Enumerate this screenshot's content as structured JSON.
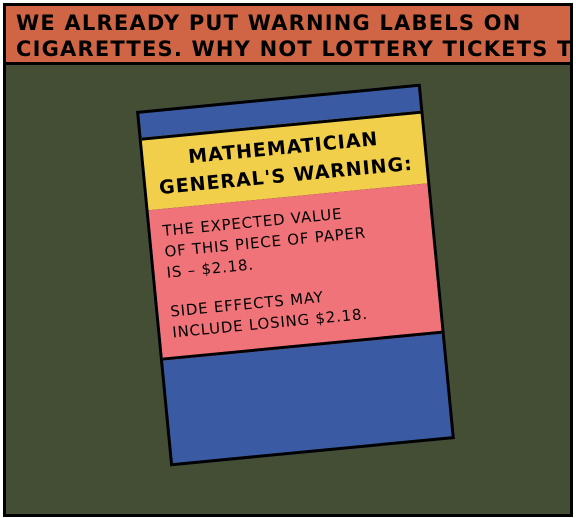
{
  "caption": {
    "line1": "WE ALREADY PUT WARNING LABELS ON",
    "line2": "CIGARETTES. WHY NOT LOTTERY TICKETS TOO?"
  },
  "ticket": {
    "title_line1": "MATHEMATICIAN",
    "title_line2": "GENERAL'S WARNING:",
    "warning_lines": [
      "THE EXPECTED VALUE",
      "OF THIS PIECE OF PAPER",
      "IS – $2.18."
    ],
    "side_effect_lines": [
      "SIDE EFFECTS MAY",
      "INCLUDE LOSING $2.18."
    ]
  },
  "colors": {
    "background": "#444e34",
    "caption_box": "#cf6545",
    "ticket_blue": "#3a5ba3",
    "ticket_yellow": "#f2cf4b",
    "ticket_pink": "#f1737a"
  }
}
